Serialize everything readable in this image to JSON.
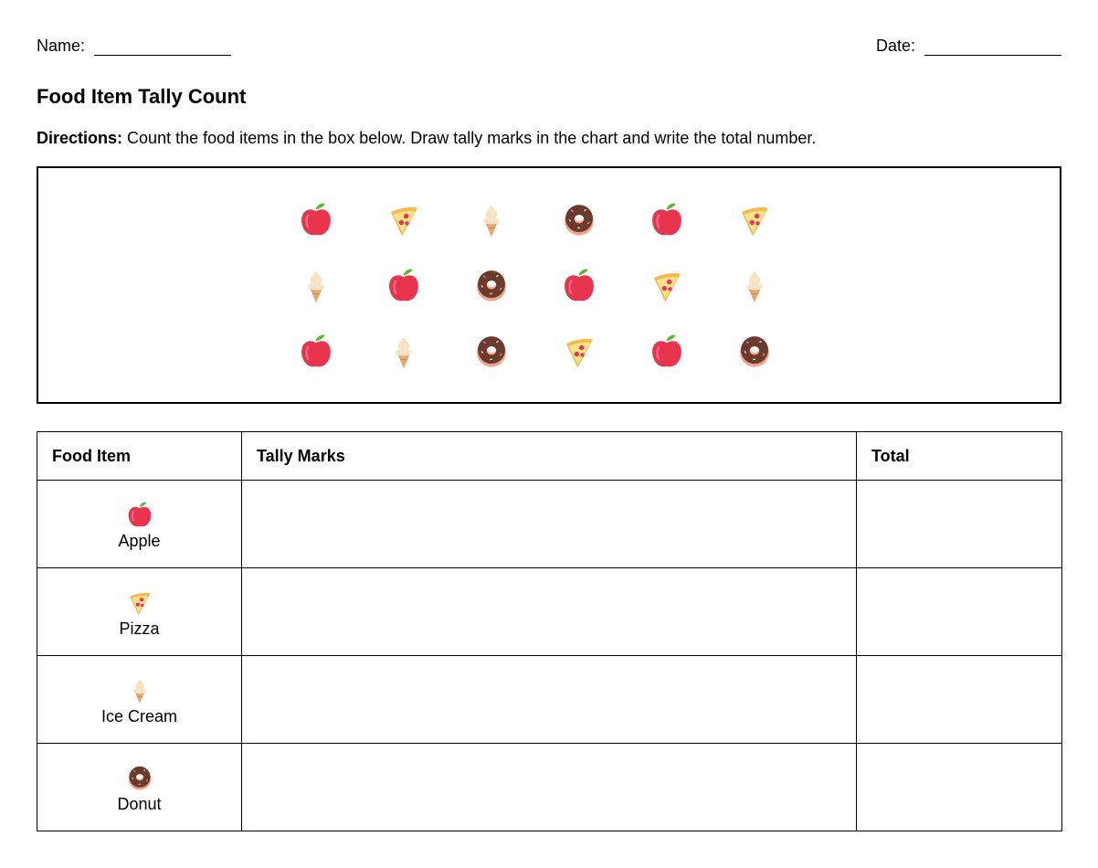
{
  "header": {
    "name_label": "Name:",
    "date_label": "Date:"
  },
  "title": "Food Item Tally Count",
  "directions": {
    "label": "Directions:",
    "text": "Count the food items in the box below. Draw tally marks in the chart and write the total number."
  },
  "food_box": {
    "rows": [
      [
        "apple-icon",
        "pizza-icon",
        "ice-cream-icon",
        "donut-icon",
        "apple-icon",
        "pizza-icon"
      ],
      [
        "ice-cream-icon",
        "apple-icon",
        "donut-icon",
        "apple-icon",
        "pizza-icon",
        "ice-cream-icon"
      ],
      [
        "apple-icon",
        "ice-cream-icon",
        "donut-icon",
        "pizza-icon",
        "apple-icon",
        "donut-icon"
      ]
    ]
  },
  "table": {
    "headers": {
      "item": "Food Item",
      "tally": "Tally Marks",
      "total": "Total"
    },
    "rows": [
      {
        "icon": "apple-icon",
        "label": "Apple"
      },
      {
        "icon": "pizza-icon",
        "label": "Pizza"
      },
      {
        "icon": "ice-cream-icon",
        "label": "Ice Cream"
      },
      {
        "icon": "donut-icon",
        "label": "Donut"
      }
    ]
  },
  "colors": {
    "apple": "#e8344e",
    "apple_leaf": "#5cb82e",
    "pizza_crust": "#f6b94a",
    "pizza_pepperoni": "#e2345a",
    "ice_cream": "#f7e3c4",
    "cone": "#e6a76a",
    "donut_frosting": "#6b3b2e",
    "donut_dough": "#f2a58c"
  }
}
